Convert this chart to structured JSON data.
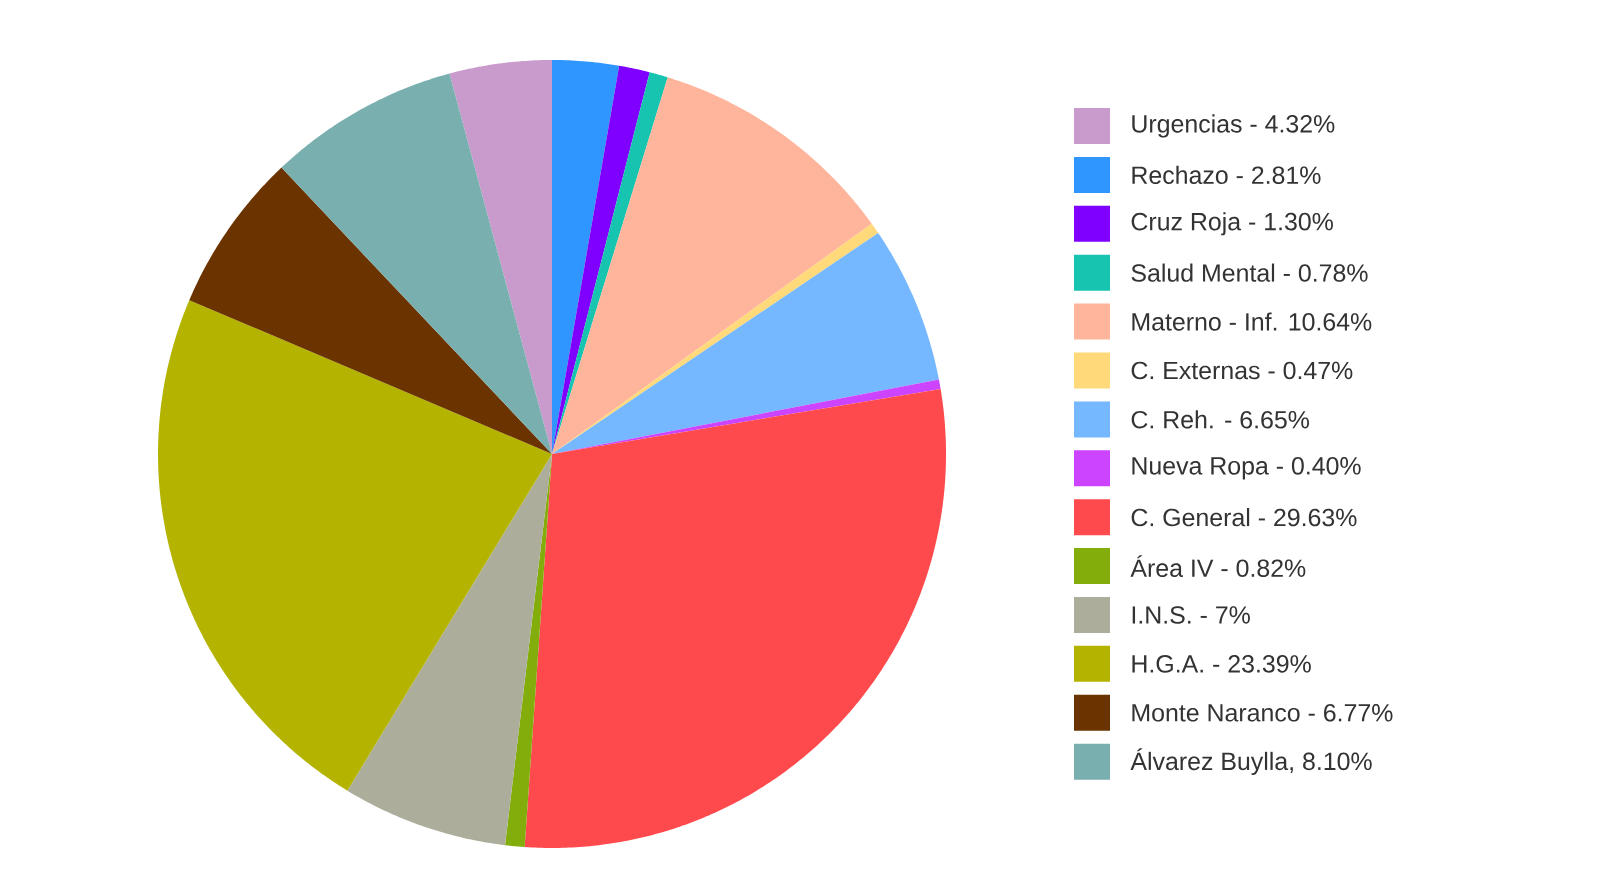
{
  "chart_data": {
    "type": "pie",
    "legend": "right",
    "categories": [
      "Urgencias - 4.32%",
      "Rechazo - 2.81%",
      "Cruz Roja - 1.30%",
      "Salud Mental - 0.78%",
      "Materno - Inf. 10.64%",
      "C. Externas - 0.47%",
      "C. Reh. - 6.65%",
      "Nueva Ropa - 0.40%",
      "C. General - 29.63%",
      "Área IV - 0.82%",
      "I.N.S. - 7%",
      "H.G.A. - 23.39%",
      "Monte Naranco - 6.77%",
      "Álvarez Buylla, 8.10%"
    ],
    "values": [
      4.32,
      2.81,
      1.3,
      0.78,
      10.64,
      0.47,
      6.65,
      0.4,
      29.63,
      0.82,
      7,
      23.39,
      6.77,
      8.1
    ],
    "colors": [
      "#c99bcc",
      "#2f96ff",
      "#7f00ff",
      "#17c4b0",
      "#ffb59b",
      "#ffd97a",
      "#75b8ff",
      "#cc44ff",
      "#ff4a4d",
      "#82ad0a",
      "#adad9b",
      "#b3b300",
      "#6b3300",
      "#79afae"
    ]
  }
}
